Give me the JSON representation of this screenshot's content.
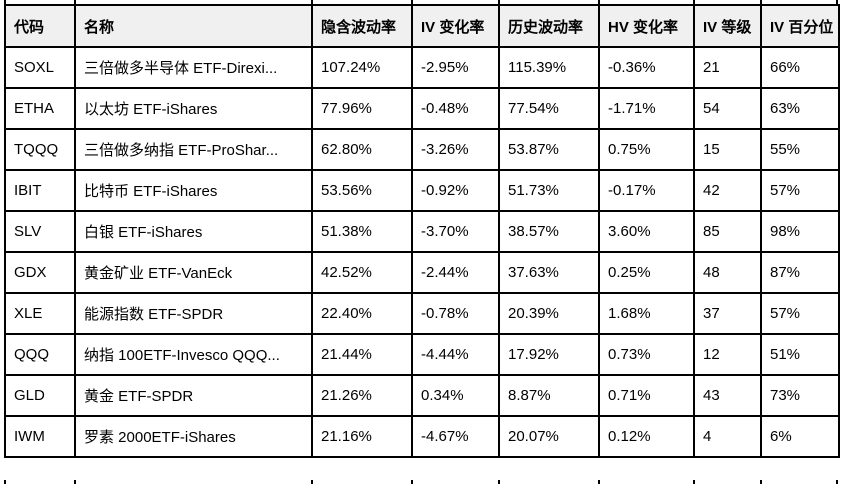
{
  "colors": {
    "border": "#000000",
    "header_bg": "#f0f0f0",
    "row_bg": "#ffffff",
    "text": "#000000"
  },
  "table": {
    "columns": [
      {
        "key": "code",
        "label": "代码"
      },
      {
        "key": "name",
        "label": "名称"
      },
      {
        "key": "implied_volatility",
        "label": "隐含波动率"
      },
      {
        "key": "iv_change",
        "label": "IV 变化率"
      },
      {
        "key": "historical_volatility",
        "label": "历史波动率"
      },
      {
        "key": "hv_change",
        "label": "HV 变化率"
      },
      {
        "key": "iv_rank",
        "label": "IV 等级"
      },
      {
        "key": "iv_percentile",
        "label": "IV 百分位"
      }
    ],
    "rows": [
      [
        "SOXL",
        "三倍做多半导体 ETF-Direxi...",
        "107.24%",
        "-2.95%",
        "115.39%",
        "-0.36%",
        "21",
        "66%"
      ],
      [
        "ETHA",
        "以太坊 ETF-iShares",
        "77.96%",
        "-0.48%",
        "77.54%",
        "-1.71%",
        "54",
        "63%"
      ],
      [
        "TQQQ",
        "三倍做多纳指 ETF-ProShar...",
        "62.80%",
        "-3.26%",
        "53.87%",
        "0.75%",
        "15",
        "55%"
      ],
      [
        "IBIT",
        "比特币 ETF-iShares",
        "53.56%",
        "-0.92%",
        "51.73%",
        "-0.17%",
        "42",
        "57%"
      ],
      [
        "SLV",
        "白银 ETF-iShares",
        "51.38%",
        "-3.70%",
        "38.57%",
        "3.60%",
        "85",
        "98%"
      ],
      [
        "GDX",
        "黄金矿业 ETF-VanEck",
        "42.52%",
        "-2.44%",
        "37.63%",
        "0.25%",
        "48",
        "87%"
      ],
      [
        "XLE",
        "能源指数 ETF-SPDR",
        "22.40%",
        "-0.78%",
        "20.39%",
        "1.68%",
        "37",
        "57%"
      ],
      [
        "QQQ",
        "纳指 100ETF-Invesco QQQ...",
        "21.44%",
        "-4.44%",
        "17.92%",
        "0.73%",
        "12",
        "51%"
      ],
      [
        "GLD",
        "黄金 ETF-SPDR",
        "21.26%",
        "0.34%",
        "8.87%",
        "0.71%",
        "43",
        "73%"
      ],
      [
        "IWM",
        "罗素 2000ETF-iShares",
        "21.16%",
        "-4.67%",
        "20.07%",
        "0.12%",
        "4",
        "6%"
      ]
    ]
  }
}
